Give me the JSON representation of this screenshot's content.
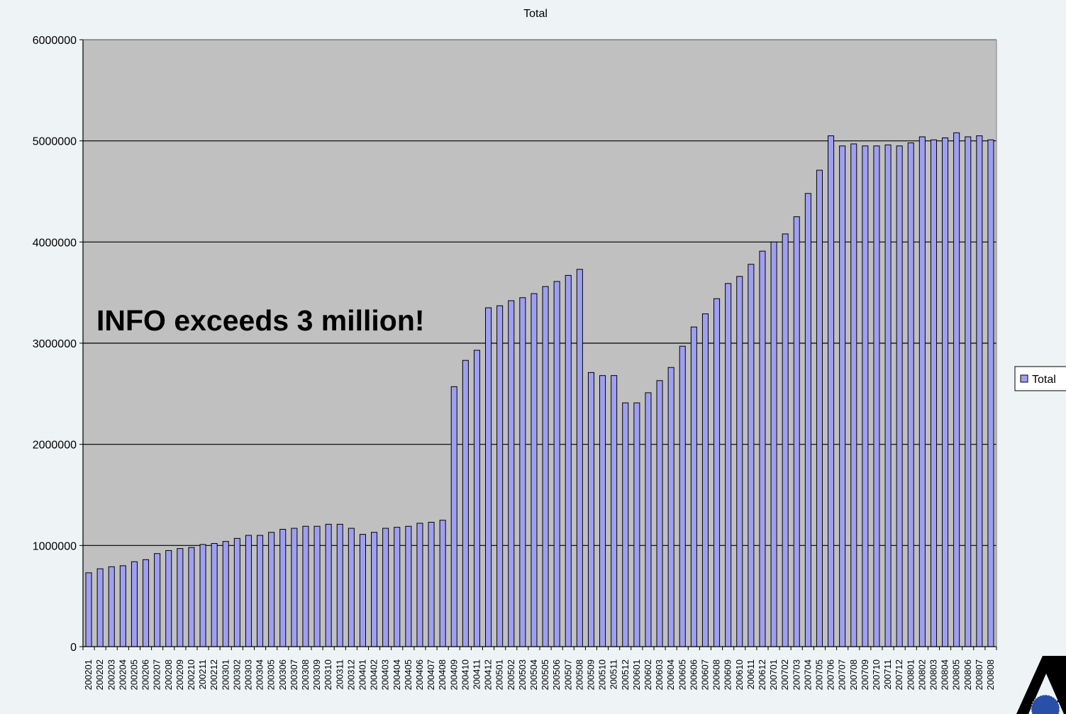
{
  "chart_data": {
    "type": "bar",
    "title": "Total",
    "xlabel": "",
    "ylabel": "",
    "ylim": [
      0,
      6000000
    ],
    "yticks": [
      0,
      1000000,
      2000000,
      3000000,
      4000000,
      5000000,
      6000000
    ],
    "ytick_labels": [
      "0",
      "1000000",
      "2000000",
      "3000000",
      "4000000",
      "5000000",
      "6000000"
    ],
    "grid": true,
    "legend": {
      "entries": [
        "Total"
      ],
      "placement": "right"
    },
    "annotation": "INFO exceeds 3 million!",
    "colors": {
      "bar": "#9f9ff2",
      "bar_edge": "#000000",
      "plot_background": "#c0c0c0",
      "page_background": "#eef3f6"
    },
    "categories": [
      "200201",
      "200202",
      "200203",
      "200204",
      "200205",
      "200206",
      "200207",
      "200208",
      "200209",
      "200210",
      "200211",
      "200212",
      "200301",
      "200302",
      "200303",
      "200304",
      "200305",
      "200306",
      "200307",
      "200308",
      "200309",
      "200310",
      "200311",
      "200312",
      "200401",
      "200402",
      "200403",
      "200404",
      "200405",
      "200406",
      "200407",
      "200408",
      "200409",
      "200410",
      "200411",
      "200412",
      "200501",
      "200502",
      "200503",
      "200504",
      "200505",
      "200506",
      "200507",
      "200508",
      "200509",
      "200510",
      "200511",
      "200512",
      "200601",
      "200602",
      "200603",
      "200604",
      "200605",
      "200606",
      "200607",
      "200608",
      "200609",
      "200610",
      "200611",
      "200612",
      "200701",
      "200702",
      "200703",
      "200704",
      "200705",
      "200706",
      "200707",
      "200708",
      "200709",
      "200710",
      "200711",
      "200712",
      "200801",
      "200802",
      "200803",
      "200804",
      "200805",
      "200806",
      "200807",
      "200808"
    ],
    "series": [
      {
        "name": "Total",
        "values": [
          730000,
          770000,
          790000,
          800000,
          840000,
          860000,
          920000,
          950000,
          970000,
          980000,
          1010000,
          1020000,
          1040000,
          1070000,
          1100000,
          1100000,
          1130000,
          1160000,
          1170000,
          1190000,
          1190000,
          1210000,
          1210000,
          1170000,
          1110000,
          1130000,
          1170000,
          1180000,
          1190000,
          1220000,
          1230000,
          1250000,
          2570000,
          2830000,
          2930000,
          3350000,
          3370000,
          3420000,
          3450000,
          3490000,
          3560000,
          3610000,
          3670000,
          3730000,
          2710000,
          2680000,
          2680000,
          2410000,
          2410000,
          2510000,
          2630000,
          2760000,
          2970000,
          3160000,
          3290000,
          3440000,
          3590000,
          3660000,
          3780000,
          3910000,
          4000000,
          4080000,
          4250000,
          4480000,
          4710000,
          5050000,
          4950000,
          4970000,
          4950000,
          4950000,
          4960000,
          4950000,
          4980000,
          5040000,
          5010000,
          5030000,
          5080000,
          5040000,
          5050000,
          5010000
        ]
      }
    ]
  },
  "logo": {
    "icon": "logo-triangle-globe-icon",
    "letter": "A"
  }
}
